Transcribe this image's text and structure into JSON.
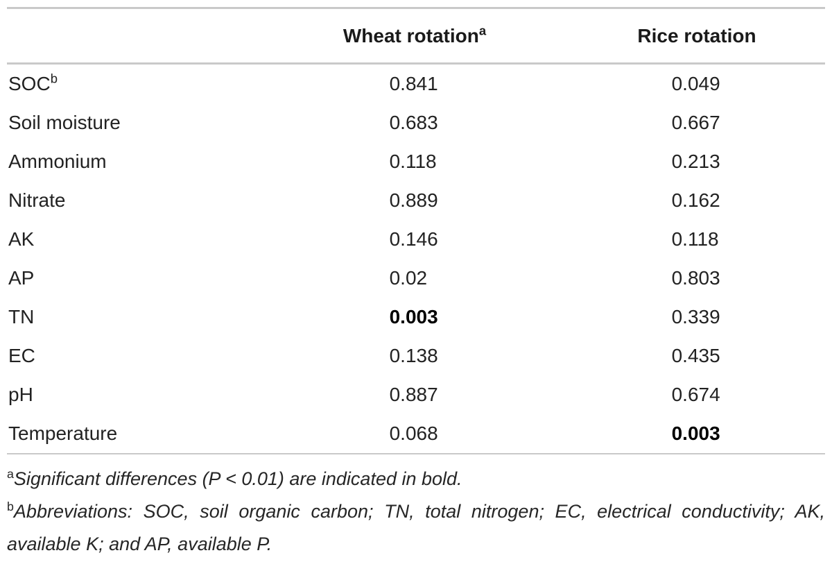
{
  "figure": {
    "header": {
      "wheat_label": "Wheat rotation",
      "wheat_sup": "a",
      "rice_label": "Rice rotation"
    },
    "rows": [
      {
        "label": "SOC",
        "label_sup": "b",
        "wheat": "0.841",
        "rice": "0.049",
        "wheat_bold": false,
        "rice_bold": false
      },
      {
        "label": "Soil moisture",
        "wheat": "0.683",
        "rice": "0.667",
        "wheat_bold": false,
        "rice_bold": false
      },
      {
        "label": "Ammonium",
        "wheat": "0.118",
        "rice": "0.213",
        "wheat_bold": false,
        "rice_bold": false
      },
      {
        "label": "Nitrate",
        "wheat": "0.889",
        "rice": "0.162",
        "wheat_bold": false,
        "rice_bold": false
      },
      {
        "label": "AK",
        "wheat": "0.146",
        "rice": "0.118",
        "wheat_bold": false,
        "rice_bold": false
      },
      {
        "label": "AP",
        "wheat": "0.02",
        "rice": "0.803",
        "wheat_bold": false,
        "rice_bold": false
      },
      {
        "label": "TN",
        "wheat": "0.003",
        "rice": "0.339",
        "wheat_bold": true,
        "rice_bold": false
      },
      {
        "label": "EC",
        "wheat": "0.138",
        "rice": "0.435",
        "wheat_bold": false,
        "rice_bold": false
      },
      {
        "label": "pH",
        "wheat": "0.887",
        "rice": "0.674",
        "wheat_bold": false,
        "rice_bold": false
      },
      {
        "label": "Temperature",
        "wheat": "0.068",
        "rice": "0.003",
        "wheat_bold": false,
        "rice_bold": true
      }
    ],
    "footnotes": [
      {
        "sup": "a",
        "text": "Significant differences (P < 0.01) are indicated in bold."
      },
      {
        "sup": "b",
        "text": "Abbreviations: SOC, soil organic carbon; TN, total nitrogen; EC, electrical conductivity; AK, available K; and AP, available P."
      }
    ],
    "colors": {
      "text": "#222222",
      "bold_text": "#000000",
      "rule": "#c9c9c9",
      "background": "#ffffff"
    }
  }
}
